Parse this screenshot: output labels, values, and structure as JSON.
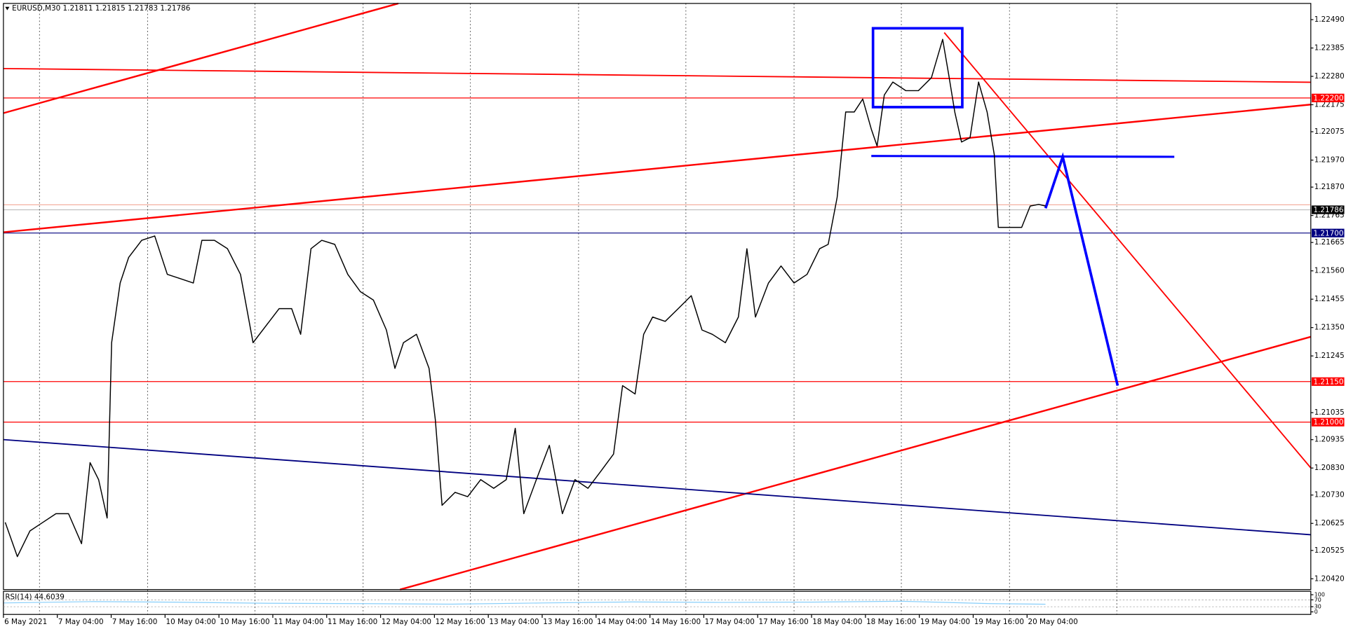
{
  "chart_data": {
    "type": "line",
    "title": "EURUSD,M30  1.21811 1.21815 1.21783 1.21786",
    "xlim": [
      0,
      291.2
    ],
    "ylim": [
      1.2038,
      1.2255
    ],
    "xticks": [
      {
        "value": 0,
        "label": "6 May 2021"
      },
      {
        "value": 12,
        "label": "7 May 04:00"
      },
      {
        "value": 24,
        "label": "7 May 16:00"
      },
      {
        "value": 36,
        "label": "10 May 04:00"
      },
      {
        "value": 48,
        "label": "10 May 16:00"
      },
      {
        "value": 60,
        "label": "11 May 04:00"
      },
      {
        "value": 72,
        "label": "11 May 16:00"
      },
      {
        "value": 84,
        "label": "12 May 04:00"
      },
      {
        "value": 96,
        "label": "12 May 16:00"
      },
      {
        "value": 108,
        "label": "13 May 04:00"
      },
      {
        "value": 120,
        "label": "13 May 16:00"
      },
      {
        "value": 132,
        "label": "14 May 04:00"
      },
      {
        "value": 144,
        "label": "14 May 16:00"
      },
      {
        "value": 156,
        "label": "17 May 04:00"
      },
      {
        "value": 168,
        "label": "17 May 16:00"
      },
      {
        "value": 180,
        "label": "18 May 04:00"
      },
      {
        "value": 192,
        "label": "18 May 16:00"
      },
      {
        "value": 204,
        "label": "19 May 04:00"
      },
      {
        "value": 216,
        "label": "19 May 16:00"
      },
      {
        "value": 228,
        "label": "20 May 04:00"
      }
    ],
    "yticks": [
      {
        "value": 1.2249,
        "label": "1.22490"
      },
      1.22385,
      {
        "value": 1.2228,
        "label": "1.22280"
      },
      1.22175,
      1.22075,
      {
        "value": 1.2197,
        "label": "1.21970"
      },
      {
        "value": 1.2187,
        "label": "1.21870"
      },
      1.21765,
      1.21665,
      {
        "value": 1.2156,
        "label": "1.21560"
      },
      1.21455,
      {
        "value": 1.2135,
        "label": "1.21350"
      },
      1.21245,
      1.21035,
      1.20935,
      {
        "value": 1.2083,
        "label": "1.20830"
      },
      {
        "value": 1.2073,
        "label": "1.20730"
      },
      1.20625,
      1.20525,
      {
        "value": 1.2042,
        "label": "1.20420"
      }
    ],
    "series": [
      {
        "color": "#000000",
        "x": [
          0.4,
          3.1,
          5.9,
          8.8,
          11.7,
          14.5,
          17.4,
          19.3,
          21.2,
          23.1,
          24.1,
          26.0,
          27.9,
          30.8,
          33.7,
          36.5,
          39.4,
          42.3,
          44.2,
          47.0,
          49.9,
          52.8,
          55.6,
          58.5,
          61.4,
          64.2,
          66.2,
          68.5,
          70.9,
          73.8,
          76.7,
          79.5,
          82.4,
          85.3,
          87.2,
          89.1,
          92.0,
          94.8,
          96.2,
          97.7,
          100.6,
          103.4,
          106.3,
          109.2,
          112.0,
          114.0,
          115.9,
          118.7,
          121.6,
          124.5,
          127.3,
          130.2,
          133.1,
          135.9,
          137.9,
          140.7,
          142.6,
          144.6,
          147.4,
          150.3,
          153.2,
          155.6,
          157.9,
          160.8,
          163.7,
          165.6,
          167.5,
          170.4,
          173.2,
          176.1,
          179.0,
          181.8,
          183.7,
          185.7,
          187.6,
          189.5,
          191.4,
          193.3,
          194.6,
          196.2,
          198.1,
          201.0,
          203.8,
          206.7,
          209.2,
          210.5,
          211.9,
          213.4,
          215.3,
          217.2,
          219.1,
          220.7,
          221.6,
          223.9,
          226.8,
          228.7,
          230.6,
          232.1
        ],
        "values": [
          1.20629,
          1.20502,
          1.20597,
          1.20629,
          1.20661,
          1.20661,
          1.2055,
          1.2085,
          1.20787,
          1.20645,
          1.21294,
          1.21515,
          1.2161,
          1.21673,
          1.21689,
          1.21547,
          1.21531,
          1.21515,
          1.21673,
          1.21673,
          1.21642,
          1.21547,
          1.21294,
          1.21357,
          1.2142,
          1.2142,
          1.21325,
          1.21642,
          1.21673,
          1.21658,
          1.21547,
          1.21483,
          1.21452,
          1.21341,
          1.21199,
          1.21294,
          1.21325,
          1.21199,
          1.21009,
          1.20692,
          1.2074,
          1.20724,
          1.20787,
          1.20755,
          1.20787,
          1.20977,
          1.20661,
          1.20787,
          1.20914,
          1.20661,
          1.20787,
          1.20755,
          1.20819,
          1.20882,
          1.21135,
          1.21104,
          1.21325,
          1.21389,
          1.21373,
          1.2142,
          1.21468,
          1.21341,
          1.21325,
          1.21294,
          1.21389,
          1.21642,
          1.21389,
          1.21515,
          1.21578,
          1.21515,
          1.21547,
          1.21642,
          1.21658,
          1.21832,
          1.22148,
          1.22148,
          1.22196,
          1.22085,
          1.22022,
          1.22211,
          1.22259,
          1.22227,
          1.22227,
          1.22275,
          1.22417,
          1.22291,
          1.22148,
          1.22037,
          1.22053,
          1.22259,
          1.22148,
          1.2199,
          1.21721,
          1.21721,
          1.21721,
          1.218,
          1.21806,
          1.218
        ]
      }
    ],
    "levels": [
      {
        "value": 1.222,
        "label": "1.22200",
        "color": "#ff0000"
      },
      {
        "value": 1.21786,
        "label": "1.21786",
        "color": "#000000"
      },
      {
        "value": 1.217,
        "label": "1.21700",
        "color": "#000080"
      },
      {
        "value": 1.2115,
        "label": "1.21150",
        "color": "#ff0000"
      },
      {
        "value": 1.21,
        "label": "1.21000",
        "color": "#ff0000"
      }
    ],
    "indicator": {
      "label": "RSI(14) 44.6039",
      "color": "#87cefa",
      "ylim": [
        0,
        100
      ],
      "yticks": [
        100,
        70,
        30,
        0
      ],
      "x": [
        0,
        20,
        40,
        60,
        80,
        100,
        120,
        140,
        160,
        180,
        200,
        220,
        232.1
      ],
      "values": [
        52,
        60,
        56,
        50,
        48,
        45,
        52,
        58,
        55,
        57,
        62,
        48,
        44.6039
      ]
    }
  }
}
